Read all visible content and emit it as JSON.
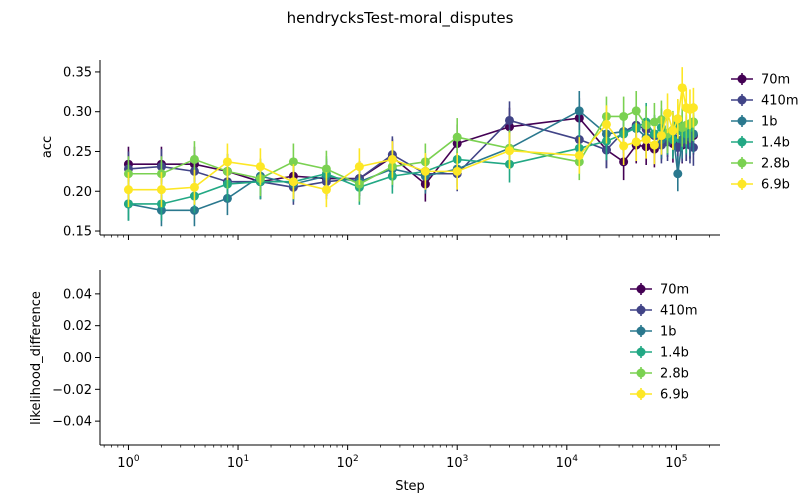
{
  "chart_data": [
    {
      "type": "line",
      "title": "hendrycksTest-moral_disputes",
      "xlabel": "",
      "ylabel": "acc",
      "xscale": "log",
      "xlim": [
        0.55,
        250000
      ],
      "ylim": [
        0.145,
        0.365
      ],
      "yticks": [
        "0.15",
        "0.20",
        "0.25",
        "0.30",
        "0.35"
      ],
      "ytick_values": [
        0.15,
        0.2,
        0.25,
        0.3,
        0.35
      ],
      "legend": "right, outside",
      "x": [
        1,
        2,
        4,
        8,
        16,
        32,
        64,
        128,
        256,
        512,
        1000,
        3000,
        13000,
        23000,
        33000,
        43000,
        53000,
        63000,
        73000,
        83000,
        93000,
        103000,
        113000,
        123000,
        133000,
        143000
      ],
      "series": [
        {
          "name": "70m",
          "color": "#440154",
          "values": [
            0.234,
            0.234,
            0.234,
            0.225,
            0.212,
            0.219,
            0.216,
            0.216,
            0.243,
            0.209,
            0.26,
            0.281,
            0.292,
            0.252,
            0.237,
            0.258,
            0.256,
            0.253,
            0.264,
            0.267,
            0.26,
            0.263,
            0.258,
            0.262,
            0.265,
            0.27
          ],
          "errors": [
            0.022,
            0.022,
            0.022,
            0.022,
            0.022,
            0.022,
            0.022,
            0.022,
            0.023,
            0.022,
            0.024,
            0.024,
            0.025,
            0.023,
            0.023,
            0.023,
            0.023,
            0.023,
            0.024,
            0.024,
            0.024,
            0.024,
            0.023,
            0.024,
            0.024,
            0.024
          ]
        },
        {
          "name": "410m",
          "color": "#414487",
          "values": [
            0.228,
            0.231,
            0.225,
            0.212,
            0.212,
            0.205,
            0.212,
            0.216,
            0.246,
            0.222,
            0.222,
            0.289,
            0.265,
            0.252,
            0.275,
            0.283,
            0.278,
            0.27,
            0.258,
            0.262,
            0.268,
            0.255,
            0.26,
            0.262,
            0.258,
            0.255
          ],
          "errors": [
            0.022,
            0.022,
            0.022,
            0.022,
            0.022,
            0.022,
            0.022,
            0.022,
            0.023,
            0.022,
            0.022,
            0.024,
            0.024,
            0.023,
            0.024,
            0.024,
            0.024,
            0.024,
            0.023,
            0.024,
            0.024,
            0.023,
            0.024,
            0.024,
            0.023,
            0.023
          ]
        },
        {
          "name": "1b",
          "color": "#2a788e",
          "values": [
            0.184,
            0.176,
            0.176,
            0.191,
            0.219,
            0.209,
            0.219,
            0.212,
            0.228,
            0.219,
            0.228,
            0.254,
            0.301,
            0.272,
            0.275,
            0.279,
            0.268,
            0.272,
            0.265,
            0.27,
            0.275,
            0.222,
            0.265,
            0.27,
            0.268,
            0.272
          ],
          "errors": [
            0.021,
            0.02,
            0.02,
            0.021,
            0.022,
            0.022,
            0.022,
            0.022,
            0.023,
            0.022,
            0.023,
            0.023,
            0.025,
            0.024,
            0.024,
            0.024,
            0.024,
            0.024,
            0.024,
            0.024,
            0.024,
            0.022,
            0.024,
            0.024,
            0.024,
            0.024
          ]
        },
        {
          "name": "1.4b",
          "color": "#22a884",
          "values": [
            0.184,
            0.184,
            0.194,
            0.209,
            0.212,
            0.212,
            0.222,
            0.205,
            0.219,
            0.225,
            0.24,
            0.234,
            0.254,
            0.263,
            0.272,
            0.28,
            0.287,
            0.272,
            0.28,
            0.27,
            0.265,
            0.285,
            0.275,
            0.272,
            0.28,
            0.287
          ],
          "errors": [
            0.021,
            0.021,
            0.021,
            0.022,
            0.022,
            0.022,
            0.022,
            0.022,
            0.022,
            0.022,
            0.023,
            0.023,
            0.023,
            0.024,
            0.024,
            0.024,
            0.024,
            0.024,
            0.024,
            0.024,
            0.024,
            0.024,
            0.024,
            0.024,
            0.024,
            0.024
          ]
        },
        {
          "name": "2.8b",
          "color": "#7ad151",
          "values": [
            0.222,
            0.222,
            0.24,
            0.225,
            0.216,
            0.237,
            0.228,
            0.209,
            0.231,
            0.237,
            0.268,
            0.254,
            0.237,
            0.294,
            0.294,
            0.301,
            0.283,
            0.287,
            0.29,
            0.272,
            0.277,
            0.291,
            0.28,
            0.283,
            0.285,
            0.287
          ],
          "errors": [
            0.022,
            0.022,
            0.023,
            0.022,
            0.022,
            0.023,
            0.023,
            0.022,
            0.023,
            0.023,
            0.024,
            0.023,
            0.023,
            0.025,
            0.025,
            0.025,
            0.024,
            0.024,
            0.024,
            0.024,
            0.024,
            0.024,
            0.024,
            0.024,
            0.024,
            0.024
          ]
        },
        {
          "name": "6.9b",
          "color": "#fde725",
          "values": [
            0.202,
            0.202,
            0.205,
            0.237,
            0.231,
            0.212,
            0.202,
            0.231,
            0.24,
            0.225,
            0.225,
            0.251,
            0.245,
            0.284,
            0.257,
            0.262,
            0.265,
            0.258,
            0.27,
            0.298,
            0.276,
            0.291,
            0.33,
            0.305,
            0.303,
            0.305
          ],
          "errors": [
            0.022,
            0.022,
            0.022,
            0.023,
            0.023,
            0.022,
            0.022,
            0.023,
            0.023,
            0.023,
            0.023,
            0.023,
            0.023,
            0.024,
            0.024,
            0.024,
            0.024,
            0.024,
            0.024,
            0.025,
            0.024,
            0.025,
            0.026,
            0.025,
            0.025,
            0.025
          ]
        }
      ]
    },
    {
      "type": "line",
      "title": "",
      "xlabel": "Step",
      "ylabel": "likelihood_difference",
      "xscale": "log",
      "xlim": [
        0.55,
        250000
      ],
      "ylim": [
        -0.055,
        0.055
      ],
      "yticks": [
        "0.04",
        "0.02",
        "0.00",
        "−0.02",
        "−0.04"
      ],
      "ytick_values": [
        0.04,
        0.02,
        0.0,
        -0.02,
        -0.04
      ],
      "xticks": [
        "10^0",
        "10^1",
        "10^2",
        "10^3",
        "10^4",
        "10^5"
      ],
      "legend": "upper right, inside",
      "series": [
        {
          "name": "70m",
          "color": "#440154",
          "values": []
        },
        {
          "name": "410m",
          "color": "#414487",
          "values": []
        },
        {
          "name": "1b",
          "color": "#2a788e",
          "values": []
        },
        {
          "name": "1.4b",
          "color": "#22a884",
          "values": []
        },
        {
          "name": "2.8b",
          "color": "#7ad151",
          "values": []
        },
        {
          "name": "6.9b",
          "color": "#fde725",
          "values": []
        }
      ]
    }
  ]
}
